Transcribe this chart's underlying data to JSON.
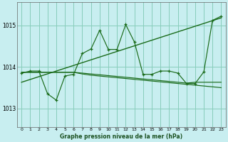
{
  "xlabel": "Graphe pression niveau de la mer (hPa)",
  "xlim": [
    -0.5,
    23.5
  ],
  "ylim": [
    1012.55,
    1015.55
  ],
  "yticks": [
    1013,
    1014,
    1015
  ],
  "xticks": [
    0,
    1,
    2,
    3,
    4,
    5,
    6,
    7,
    8,
    9,
    10,
    11,
    12,
    13,
    14,
    15,
    16,
    17,
    18,
    19,
    20,
    21,
    22,
    23
  ],
  "bg_color": "#c8eef0",
  "grid_color": "#88ccbb",
  "line_color": "#1a6b1a",
  "jagged": [
    1013.85,
    1013.9,
    1013.9,
    1013.35,
    1013.2,
    1013.78,
    1013.82,
    1014.32,
    1014.43,
    1014.88,
    1014.42,
    1014.42,
    1015.02,
    1014.6,
    1013.82,
    1013.82,
    1013.9,
    1013.9,
    1013.85,
    1013.6,
    1013.6,
    1013.88,
    1015.12,
    1015.22
  ],
  "flat1": [
    1013.87,
    1013.87,
    1013.87,
    1013.87,
    1013.87,
    1013.87,
    1013.87,
    1013.83,
    1013.8,
    1013.78,
    1013.76,
    1013.74,
    1013.72,
    1013.7,
    1013.68,
    1013.66,
    1013.64,
    1013.62,
    1013.6,
    1013.58,
    1013.56,
    1013.54,
    1013.52,
    1013.5
  ],
  "flat2": [
    1013.87,
    1013.87,
    1013.87,
    1013.87,
    1013.87,
    1013.87,
    1013.87,
    1013.85,
    1013.83,
    1013.81,
    1013.79,
    1013.77,
    1013.75,
    1013.73,
    1013.71,
    1013.69,
    1013.67,
    1013.65,
    1013.63,
    1013.61,
    1013.63,
    1013.63,
    1013.63,
    1013.63
  ],
  "trend_x": [
    0,
    23
  ],
  "trend_y": [
    1013.63,
    1015.18
  ]
}
